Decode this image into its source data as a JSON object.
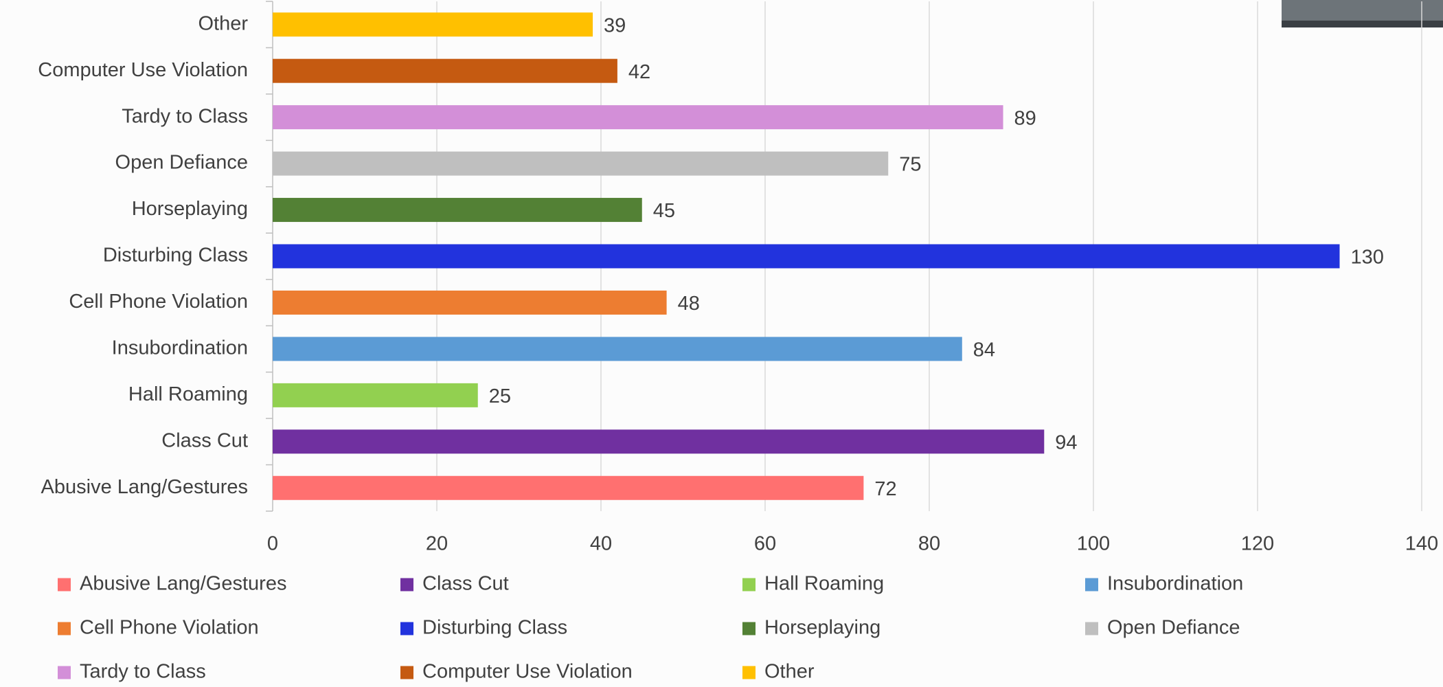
{
  "chart_data": {
    "type": "bar",
    "orientation": "horizontal",
    "categories": [
      "Abusive Lang/Gestures",
      "Class Cut",
      "Hall Roaming",
      "Insubordination",
      "Cell Phone Violation",
      "Disturbing Class",
      "Horseplaying",
      "Open Defiance",
      "Tardy to Class",
      "Computer Use Violation",
      "Other"
    ],
    "values": [
      72,
      94,
      25,
      84,
      48,
      130,
      45,
      75,
      89,
      42,
      39
    ],
    "colors": [
      "#ff7070",
      "#7030a0",
      "#92d050",
      "#5b9bd5",
      "#ed7d31",
      "#2233dd",
      "#538135",
      "#bfbfbf",
      "#d38fd8",
      "#c55a11",
      "#ffc000"
    ],
    "xlim": [
      0,
      140
    ],
    "xticks": [
      0,
      20,
      40,
      60,
      80,
      100,
      120,
      140
    ],
    "grid": true,
    "legend": "bottom"
  }
}
